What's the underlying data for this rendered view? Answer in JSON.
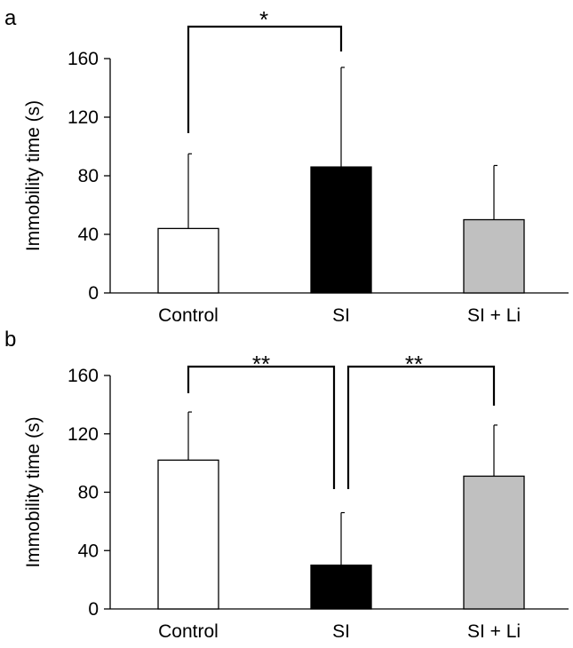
{
  "chart_data": [
    {
      "panel_label": "a",
      "type": "bar",
      "categories": [
        "Control",
        "SI",
        "SI + Li"
      ],
      "values": [
        44,
        86,
        50
      ],
      "error_upper": [
        95,
        154,
        87
      ],
      "bar_colors": [
        "#ffffff",
        "#000000",
        "#c0c0c0"
      ],
      "ylabel": "Immobility time (s)",
      "xlabel": "",
      "ylim": [
        0,
        160
      ],
      "yticks": [
        "0",
        "40",
        "80",
        "120",
        "160"
      ],
      "significance": [
        {
          "from": 0,
          "to": 1,
          "label": "*"
        }
      ]
    },
    {
      "panel_label": "b",
      "type": "bar",
      "categories": [
        "Control",
        "SI",
        "SI + Li"
      ],
      "values": [
        102,
        30,
        91
      ],
      "error_upper": [
        135,
        66,
        126
      ],
      "bar_colors": [
        "#ffffff",
        "#000000",
        "#c0c0c0"
      ],
      "ylabel": "Immobility time (s)",
      "xlabel": "",
      "ylim": [
        0,
        160
      ],
      "yticks": [
        "0",
        "40",
        "80",
        "120",
        "160"
      ],
      "significance": [
        {
          "from": 0,
          "to": 1,
          "label": "**"
        },
        {
          "from": 1,
          "to": 2,
          "label": "**"
        }
      ]
    }
  ]
}
